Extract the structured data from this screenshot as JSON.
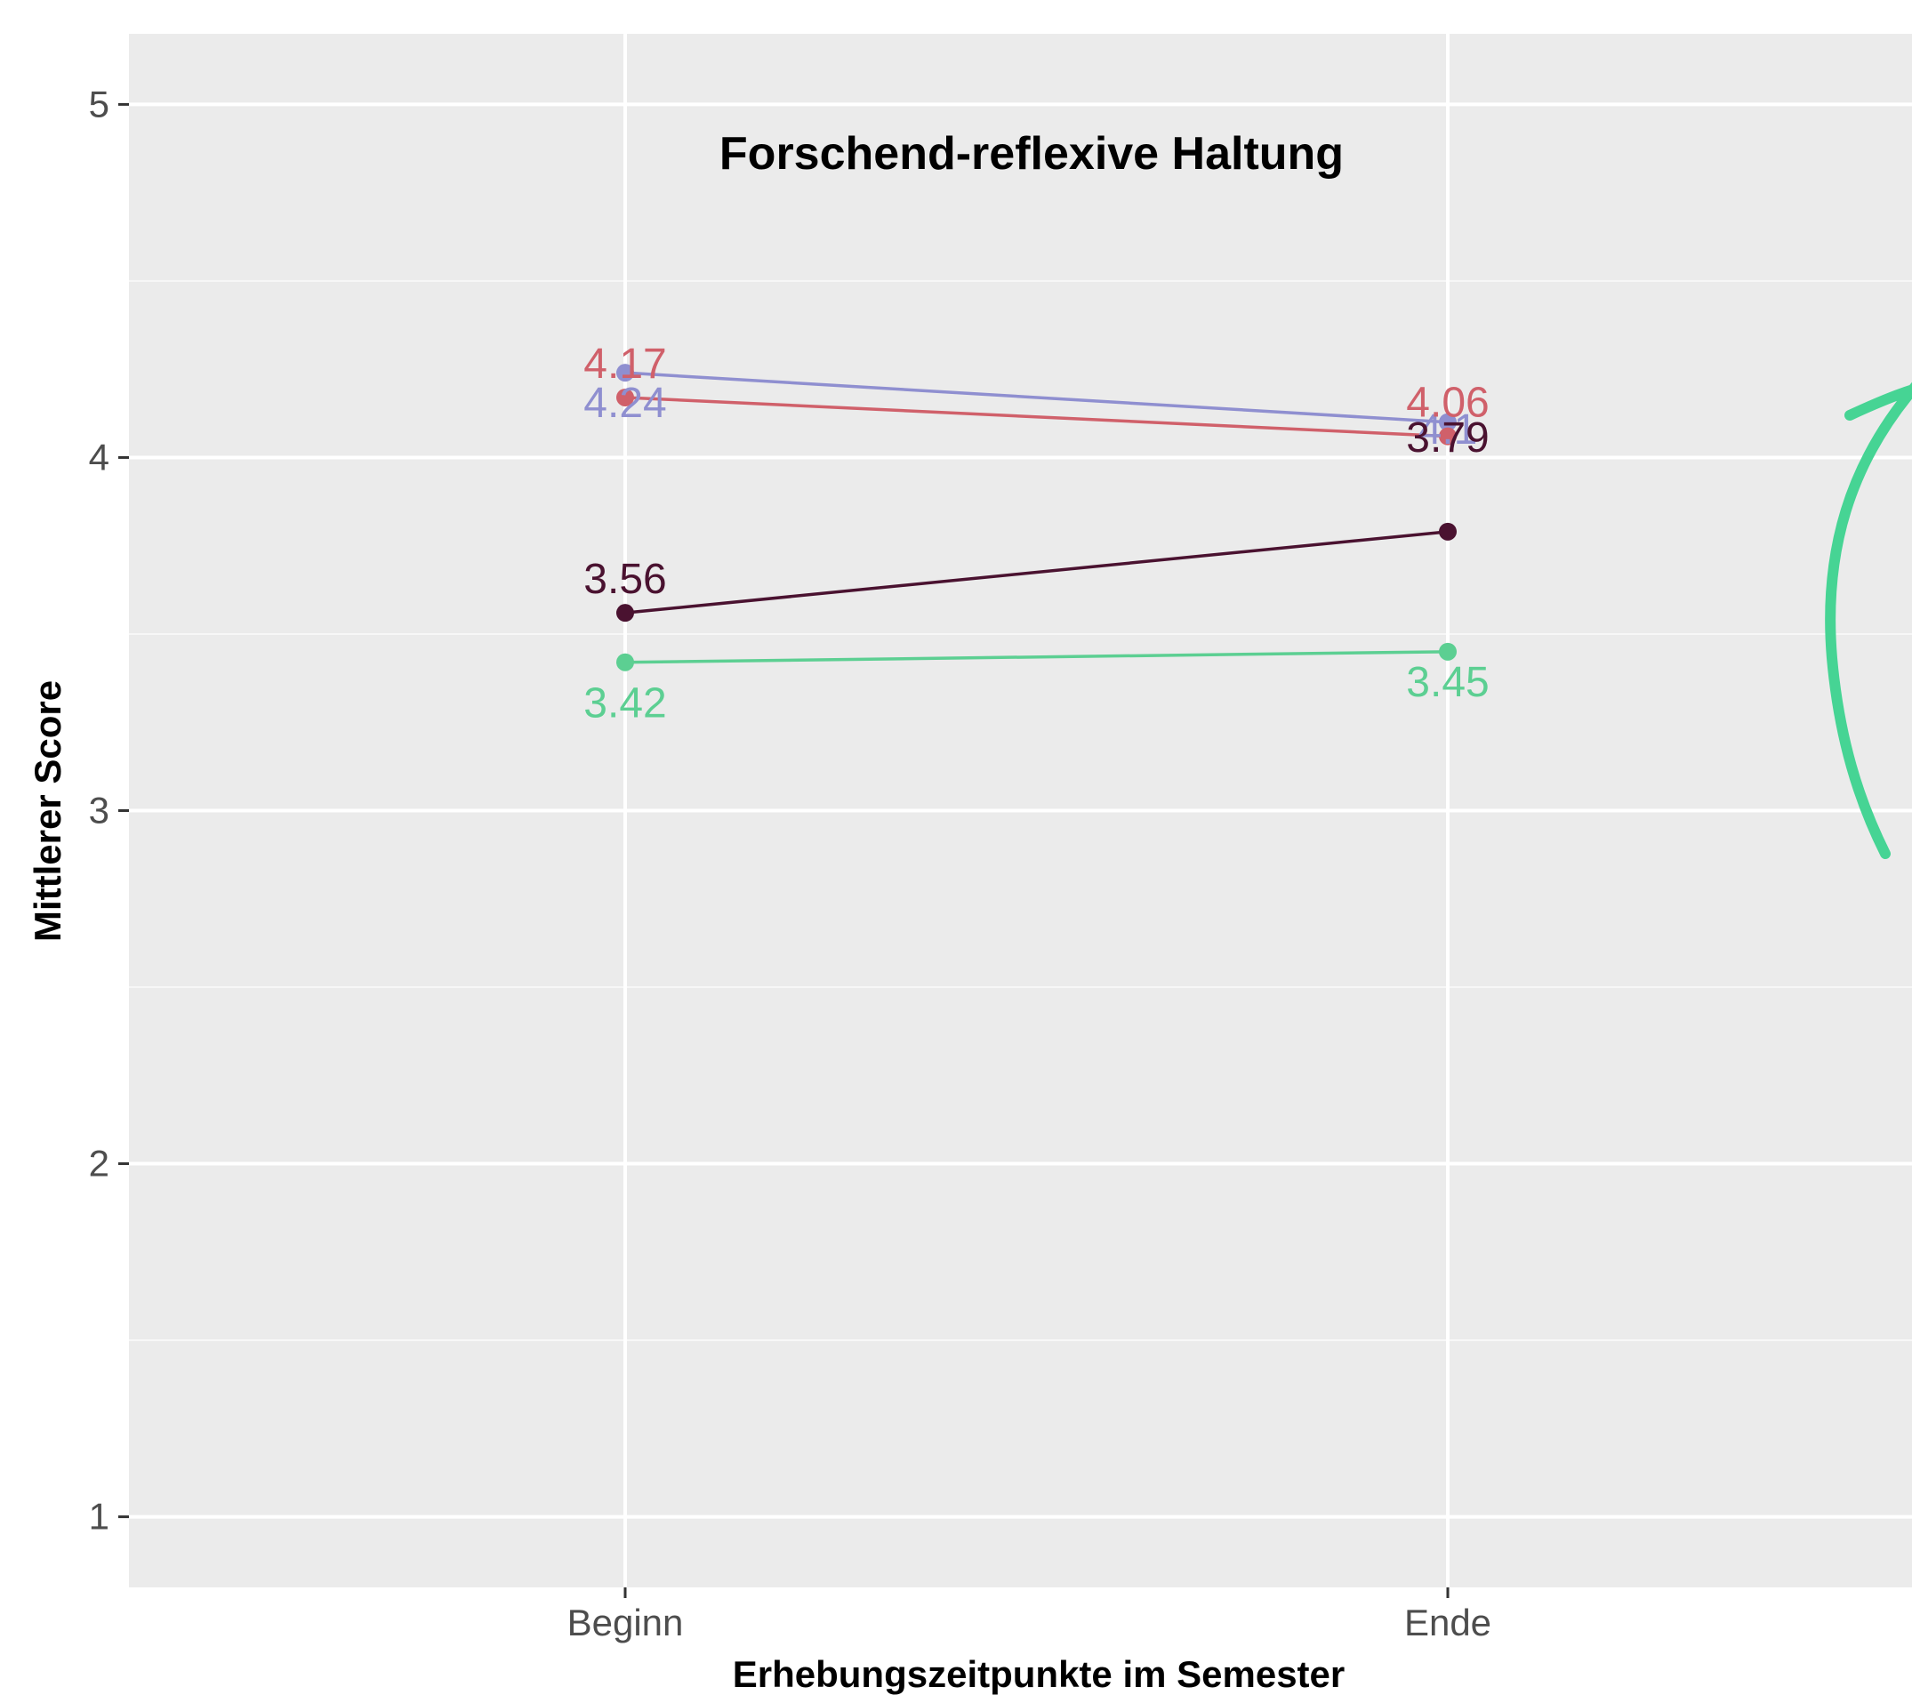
{
  "chart_data": {
    "type": "line",
    "title": "Forschend-reflexive Haltung",
    "xlabel": "Erhebungszeitpunkte im Semester",
    "ylabel": "Mittlerer Score",
    "categories": [
      "Beginn",
      "Ende"
    ],
    "ylim": [
      0.8,
      5.2
    ],
    "yticks": [
      1,
      2,
      3,
      4,
      5
    ],
    "grid": true,
    "series": [
      {
        "color": "#8f8fd0",
        "values": [
          4.24,
          4.1
        ],
        "labels": [
          "4.24",
          "4.1"
        ]
      },
      {
        "color": "#d0606a",
        "values": [
          4.17,
          4.06
        ],
        "labels": [
          "4.17",
          "4.06"
        ]
      },
      {
        "color": "#4a1230",
        "values": [
          3.56,
          3.79
        ],
        "labels": [
          "3.56",
          "3.79"
        ]
      },
      {
        "color": "#5ccf92",
        "values": [
          3.42,
          3.45
        ],
        "labels": [
          "3.42",
          "3.45"
        ]
      }
    ],
    "decoration_color": "#46d494"
  }
}
